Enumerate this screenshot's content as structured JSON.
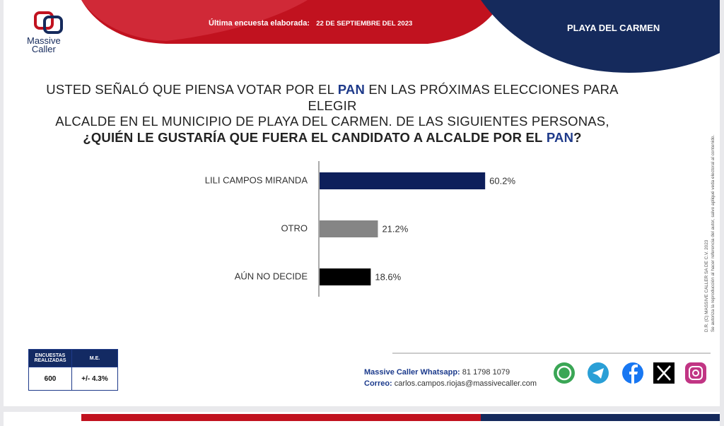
{
  "header": {
    "logo_line1": "Massive",
    "logo_line2": "Caller",
    "survey_label": "Última encuesta elaborada:",
    "survey_date": "22 DE SEPTIEMBRE DEL 2023",
    "location": "PLAYA DEL CARMEN"
  },
  "question": {
    "part1": "USTED SEÑALÓ QUE PIENSA VOTAR POR EL",
    "party": "PAN",
    "part2": "EN LAS PRÓXIMAS ELECCIONES PARA ELEGIR",
    "part3": "ALCALDE EN EL MUNICIPIO DE PLAYA DEL CARMEN. DE LAS SIGUIENTES PERSONAS,",
    "part4": "¿QUIÉN LE GUSTARÍA QUE FUERA EL CANDIDATO A ALCALDE POR EL",
    "part5": "?"
  },
  "chart_data": {
    "type": "bar",
    "orientation": "horizontal",
    "categories": [
      "LILI CAMPOS MIRANDA",
      "OTRO",
      "AÚN NO DECIDE"
    ],
    "values": [
      60.2,
      21.2,
      18.6
    ],
    "value_labels": [
      "60.2%",
      "21.2%",
      "18.6%"
    ],
    "colors": [
      "#0e1f5b",
      "#858585",
      "#000000"
    ]
  },
  "sample_table": {
    "headers": [
      "ENCUESTAS REALIZADAS",
      "M.E."
    ],
    "row": [
      "600",
      "+/- 4.3%"
    ]
  },
  "side_note": {
    "line1": "D.R. (C) MASSIVE CALLER SA DE C.V. 2023",
    "line2": "Se autoriza la reproducción al hacer referencia del autor, salvo apliqué veda electoral al contenido."
  },
  "footer": {
    "whatsapp_label": "Massive Caller Whatsapp:",
    "whatsapp_number": "81 1798 1079",
    "email_label": "Correo:",
    "email": "carlos.campos.riojas@massivecaller.com"
  }
}
